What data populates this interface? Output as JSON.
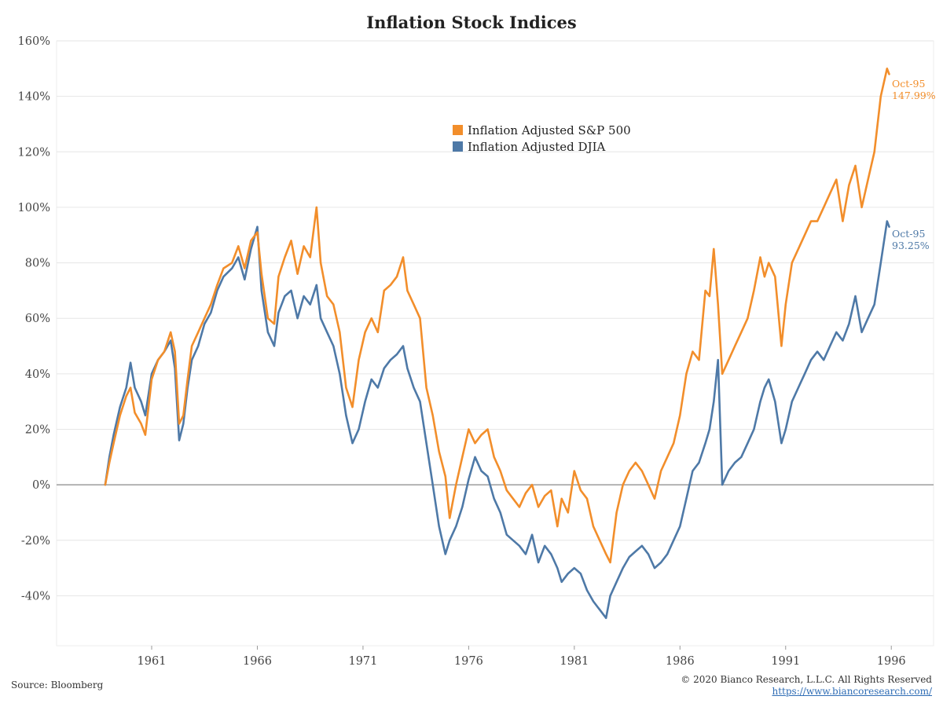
{
  "title": "Inflation Stock Indices",
  "source": "Source: Bloomberg",
  "copyright": "© 2020 Bianco Research, L.L.C. All Rights Reserved",
  "url": "https://www.biancoresearch.com/",
  "colors": {
    "sp500": "#f28e2b",
    "djia": "#4e79a7",
    "zero_line": "#888888",
    "grid": "#e6e6e6"
  },
  "legend": {
    "sp500": "Inflation Adjusted S&P 500",
    "djia": "Inflation Adjusted DJIA"
  },
  "end_labels": {
    "sp500": {
      "date": "Oct-95",
      "value": "147.99%"
    },
    "djia": {
      "date": "Oct-95",
      "value": "93.25%"
    }
  },
  "chart_data": {
    "type": "line",
    "title": "Inflation Stock Indices",
    "xlabel": "",
    "ylabel": "",
    "xlim": [
      1956.5,
      1998.0
    ],
    "ylim": [
      -58,
      160
    ],
    "x_ticks": [
      1961,
      1966,
      1971,
      1976,
      1981,
      1986,
      1991,
      1996
    ],
    "x_tick_labels": [
      "1961",
      "1966",
      "1971",
      "1976",
      "1981",
      "1986",
      "1991",
      "1996"
    ],
    "y_ticks": [
      -40,
      -20,
      0,
      20,
      40,
      60,
      80,
      100,
      120,
      140,
      160
    ],
    "y_tick_labels": [
      "-40%",
      "-20%",
      "0%",
      "20%",
      "40%",
      "60%",
      "80%",
      "100%",
      "120%",
      "140%",
      "160%"
    ],
    "grid": "horizontal",
    "legend_position": "top-center",
    "series": [
      {
        "name": "Inflation Adjusted S&P 500",
        "x": [
          1958.8,
          1959.0,
          1959.2,
          1959.5,
          1959.8,
          1960.0,
          1960.2,
          1960.5,
          1960.7,
          1961.0,
          1961.3,
          1961.6,
          1961.9,
          1962.1,
          1962.3,
          1962.5,
          1962.7,
          1962.9,
          1963.2,
          1963.5,
          1963.8,
          1964.1,
          1964.4,
          1964.8,
          1965.1,
          1965.4,
          1965.7,
          1966.0,
          1966.2,
          1966.5,
          1966.8,
          1967.0,
          1967.3,
          1967.6,
          1967.9,
          1968.2,
          1968.5,
          1968.8,
          1969.0,
          1969.3,
          1969.6,
          1969.9,
          1970.2,
          1970.5,
          1970.8,
          1971.1,
          1971.4,
          1971.7,
          1972.0,
          1972.3,
          1972.6,
          1972.9,
          1973.1,
          1973.4,
          1973.7,
          1974.0,
          1974.3,
          1974.6,
          1974.9,
          1975.1,
          1975.4,
          1975.7,
          1976.0,
          1976.3,
          1976.6,
          1976.9,
          1977.2,
          1977.5,
          1977.8,
          1978.1,
          1978.4,
          1978.7,
          1979.0,
          1979.3,
          1979.6,
          1979.9,
          1980.2,
          1980.4,
          1980.7,
          1981.0,
          1981.3,
          1981.6,
          1981.9,
          1982.2,
          1982.5,
          1982.7,
          1983.0,
          1983.3,
          1983.6,
          1983.9,
          1984.2,
          1984.5,
          1984.8,
          1985.1,
          1985.4,
          1985.7,
          1986.0,
          1986.3,
          1986.6,
          1986.9,
          1987.2,
          1987.4,
          1987.6,
          1987.8,
          1988.0,
          1988.3,
          1988.6,
          1988.9,
          1989.2,
          1989.5,
          1989.8,
          1990.0,
          1990.2,
          1990.5,
          1990.8,
          1991.0,
          1991.3,
          1991.6,
          1991.9,
          1992.2,
          1992.5,
          1992.8,
          1993.1,
          1993.4,
          1993.7,
          1994.0,
          1994.3,
          1994.6,
          1994.9,
          1995.2,
          1995.5,
          1995.8,
          1995.9
        ],
        "values": [
          0,
          8,
          15,
          25,
          32,
          35,
          26,
          22,
          18,
          38,
          45,
          48,
          55,
          48,
          22,
          25,
          38,
          50,
          55,
          60,
          65,
          72,
          78,
          80,
          86,
          78,
          88,
          91,
          76,
          60,
          58,
          75,
          82,
          88,
          76,
          86,
          82,
          100,
          80,
          68,
          65,
          55,
          35,
          28,
          45,
          55,
          60,
          55,
          70,
          72,
          75,
          82,
          70,
          65,
          60,
          35,
          25,
          12,
          3,
          -12,
          0,
          10,
          20,
          15,
          18,
          20,
          10,
          5,
          -2,
          -5,
          -8,
          -3,
          0,
          -8,
          -4,
          -2,
          -15,
          -5,
          -10,
          5,
          -2,
          -5,
          -15,
          -20,
          -25,
          -28,
          -10,
          0,
          5,
          8,
          5,
          0,
          -5,
          5,
          10,
          15,
          25,
          40,
          48,
          45,
          70,
          68,
          85,
          65,
          40,
          45,
          50,
          55,
          60,
          70,
          82,
          75,
          80,
          75,
          50,
          65,
          80,
          85,
          90,
          95,
          95,
          100,
          105,
          110,
          95,
          108,
          115,
          100,
          110,
          120,
          140,
          150,
          148
        ]
      },
      {
        "name": "Inflation Adjusted DJIA",
        "x": [
          1958.8,
          1959.0,
          1959.2,
          1959.5,
          1959.8,
          1960.0,
          1960.2,
          1960.5,
          1960.7,
          1961.0,
          1961.3,
          1961.6,
          1961.9,
          1962.1,
          1962.3,
          1962.5,
          1962.7,
          1962.9,
          1963.2,
          1963.5,
          1963.8,
          1964.1,
          1964.4,
          1964.8,
          1965.1,
          1965.4,
          1965.7,
          1966.0,
          1966.2,
          1966.5,
          1966.8,
          1967.0,
          1967.3,
          1967.6,
          1967.9,
          1968.2,
          1968.5,
          1968.8,
          1969.0,
          1969.3,
          1969.6,
          1969.9,
          1970.2,
          1970.5,
          1970.8,
          1971.1,
          1971.4,
          1971.7,
          1972.0,
          1972.3,
          1972.6,
          1972.9,
          1973.1,
          1973.4,
          1973.7,
          1974.0,
          1974.3,
          1974.6,
          1974.9,
          1975.1,
          1975.4,
          1975.7,
          1976.0,
          1976.3,
          1976.6,
          1976.9,
          1977.2,
          1977.5,
          1977.8,
          1978.1,
          1978.4,
          1978.7,
          1979.0,
          1979.3,
          1979.6,
          1979.9,
          1980.2,
          1980.4,
          1980.7,
          1981.0,
          1981.3,
          1981.6,
          1981.9,
          1982.2,
          1982.5,
          1982.7,
          1983.0,
          1983.3,
          1983.6,
          1983.9,
          1984.2,
          1984.5,
          1984.8,
          1985.1,
          1985.4,
          1985.7,
          1986.0,
          1986.3,
          1986.6,
          1986.9,
          1987.2,
          1987.4,
          1987.6,
          1987.8,
          1988.0,
          1988.3,
          1988.6,
          1988.9,
          1989.2,
          1989.5,
          1989.8,
          1990.0,
          1990.2,
          1990.5,
          1990.8,
          1991.0,
          1991.3,
          1991.6,
          1991.9,
          1992.2,
          1992.5,
          1992.8,
          1993.1,
          1993.4,
          1993.7,
          1994.0,
          1994.3,
          1994.6,
          1994.9,
          1995.2,
          1995.5,
          1995.8,
          1995.9
        ],
        "values": [
          0,
          10,
          18,
          28,
          35,
          44,
          35,
          30,
          25,
          40,
          45,
          48,
          52,
          42,
          16,
          22,
          35,
          45,
          50,
          58,
          62,
          70,
          75,
          78,
          82,
          74,
          85,
          93,
          70,
          55,
          50,
          62,
          68,
          70,
          60,
          68,
          65,
          72,
          60,
          55,
          50,
          40,
          25,
          15,
          20,
          30,
          38,
          35,
          42,
          45,
          47,
          50,
          42,
          35,
          30,
          15,
          0,
          -15,
          -25,
          -20,
          -15,
          -8,
          2,
          10,
          5,
          3,
          -5,
          -10,
          -18,
          -20,
          -22,
          -25,
          -18,
          -28,
          -22,
          -25,
          -30,
          -35,
          -32,
          -30,
          -32,
          -38,
          -42,
          -45,
          -48,
          -40,
          -35,
          -30,
          -26,
          -24,
          -22,
          -25,
          -30,
          -28,
          -25,
          -20,
          -15,
          -5,
          5,
          8,
          15,
          20,
          30,
          45,
          0,
          5,
          8,
          10,
          15,
          20,
          30,
          35,
          38,
          30,
          15,
          20,
          30,
          35,
          40,
          45,
          48,
          45,
          50,
          55,
          52,
          58,
          68,
          55,
          60,
          65,
          80,
          95,
          93
        ]
      }
    ]
  }
}
